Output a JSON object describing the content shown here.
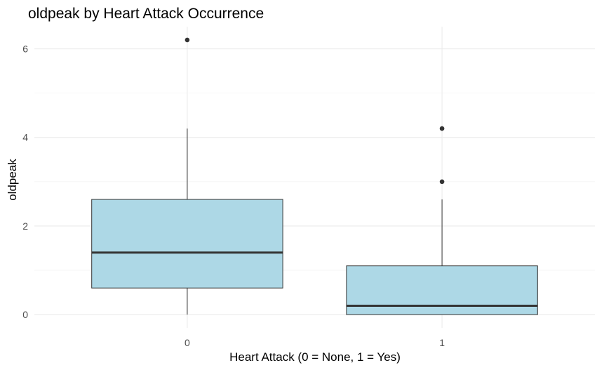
{
  "chart_data": {
    "type": "boxplot",
    "title": "oldpeak by Heart Attack Occurrence",
    "xlabel": "Heart Attack (0 = None, 1 = Yes)",
    "ylabel": "oldpeak",
    "ylim": [
      -0.3,
      6.5
    ],
    "y_ticks": [
      "0",
      "2",
      "4",
      "6"
    ],
    "grid": true,
    "box_fill": "#ADD8E6",
    "line_color": "#333333",
    "categories": [
      "0",
      "1"
    ],
    "boxes": [
      {
        "category": "0",
        "whisker_low": 0.0,
        "q1": 0.6,
        "median": 1.4,
        "q3": 2.6,
        "whisker_high": 4.2,
        "outliers": [
          6.2
        ]
      },
      {
        "category": "1",
        "whisker_low": 0.0,
        "q1": 0.0,
        "median": 0.2,
        "q3": 1.1,
        "whisker_high": 2.6,
        "outliers": [
          3.0,
          4.2
        ]
      }
    ]
  }
}
